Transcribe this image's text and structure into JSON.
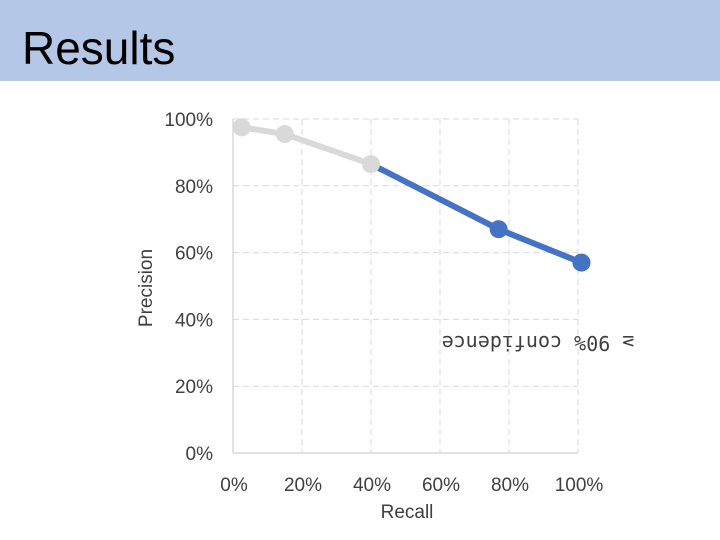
{
  "slide": {
    "title": "Results"
  },
  "chart_data": {
    "type": "line",
    "title": "",
    "xlabel": "Recall",
    "ylabel": "Precision",
    "xlim": [
      0,
      100
    ],
    "ylim": [
      0,
      100
    ],
    "x_ticks": [
      0,
      20,
      40,
      60,
      80,
      100
    ],
    "y_ticks": [
      0,
      20,
      40,
      60,
      80,
      100
    ],
    "x_tick_labels": [
      "0%",
      "20%",
      "40%",
      "60%",
      "80%",
      "100%"
    ],
    "y_tick_labels": [
      "0%",
      "20%",
      "40%",
      "60%",
      "80%",
      "100%"
    ],
    "grid": true,
    "annotation": "≥ 90% confidence",
    "annotation_mirrored": true,
    "series": [
      {
        "color": "#d9d9d9",
        "x": [
          2.5,
          15,
          40
        ],
        "y": [
          97.5,
          95.5,
          86.5
        ]
      },
      {
        "color": "#4472c4",
        "x": [
          40,
          77,
          101
        ],
        "y": [
          86.5,
          67,
          57
        ]
      }
    ]
  }
}
